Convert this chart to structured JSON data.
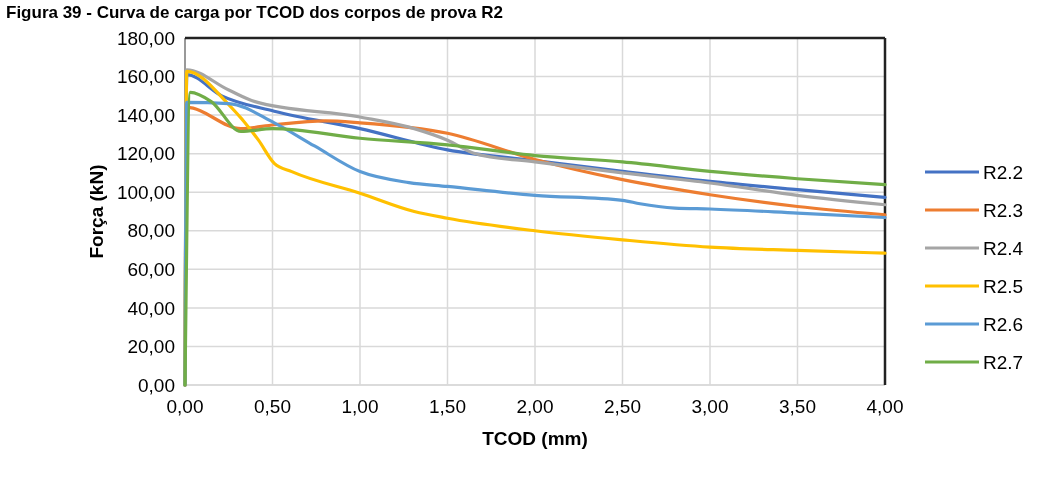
{
  "chart_data": {
    "type": "line",
    "title": "Figura 39 - Curva de carga por TCOD dos corpos de prova R2",
    "xlabel": "TCOD (mm)",
    "ylabel": "Força (kN)",
    "xlim": [
      0,
      4
    ],
    "ylim": [
      0,
      180
    ],
    "xticks": [
      {
        "value": 0,
        "label": "0,00"
      },
      {
        "value": 0.5,
        "label": "0,50"
      },
      {
        "value": 1,
        "label": "1,00"
      },
      {
        "value": 1.5,
        "label": "1,50"
      },
      {
        "value": 2,
        "label": "2,00"
      },
      {
        "value": 2.5,
        "label": "2,50"
      },
      {
        "value": 3,
        "label": "3,00"
      },
      {
        "value": 3.5,
        "label": "3,50"
      },
      {
        "value": 4,
        "label": "4,00"
      }
    ],
    "yticks": [
      {
        "value": 0,
        "label": "0,00"
      },
      {
        "value": 20,
        "label": "20,00"
      },
      {
        "value": 40,
        "label": "40,00"
      },
      {
        "value": 60,
        "label": "60,00"
      },
      {
        "value": 80,
        "label": "80,00"
      },
      {
        "value": 100,
        "label": "100,00"
      },
      {
        "value": 120,
        "label": "120,00"
      },
      {
        "value": 140,
        "label": "140,00"
      },
      {
        "value": 160,
        "label": "160,00"
      },
      {
        "value": 180,
        "label": "180,00"
      }
    ],
    "grid": true,
    "legend": "right",
    "marker": "none",
    "line_style": "solid",
    "series": [
      {
        "name": "R2.2",
        "color": "#4472c4",
        "x": [
          0,
          0.01,
          0.21,
          0.51,
          1.0,
          1.5,
          2.0,
          2.5,
          3.0,
          3.5,
          4.0
        ],
        "values": [
          0,
          161,
          150,
          142,
          133,
          122,
          116.4,
          110.8,
          105.6,
          101.3,
          97.3
        ]
      },
      {
        "name": "R2.3",
        "color": "#ed7d31",
        "x": [
          0,
          0.01,
          0.32,
          0.51,
          0.8,
          1.0,
          1.5,
          2.0,
          2.5,
          3.0,
          3.5,
          4.0
        ],
        "values": [
          0,
          144,
          133,
          135,
          137,
          136,
          130.6,
          117,
          106.5,
          98.7,
          92.6,
          88.3
        ]
      },
      {
        "name": "R2.4",
        "color": "#a5a5a5",
        "x": [
          0,
          0.01,
          0.25,
          0.4,
          1.0,
          1.31,
          1.5,
          1.66,
          2.0,
          2.5,
          3.0,
          3.5,
          4.0
        ],
        "values": [
          0,
          163.5,
          153,
          147,
          139,
          133,
          127,
          120,
          115.7,
          110,
          104.8,
          98.4,
          93.5
        ]
      },
      {
        "name": "R2.5",
        "color": "#ffc000",
        "x": [
          0,
          0.01,
          0.25,
          0.42,
          0.51,
          0.61,
          1.0,
          1.31,
          1.5,
          2.0,
          2.5,
          3.0,
          3.5,
          4.0
        ],
        "values": [
          0,
          162.7,
          145.4,
          127,
          115,
          110.7,
          99.5,
          90,
          86.5,
          80,
          75.3,
          71.5,
          69.8,
          68.4
        ]
      },
      {
        "name": "R2.6",
        "color": "#5b9bd5",
        "x": [
          0,
          0.01,
          0.25,
          0.51,
          0.74,
          1.0,
          1.28,
          1.5,
          2.0,
          2.5,
          2.6,
          2.8,
          3.0,
          3.5,
          4.0
        ],
        "values": [
          0,
          146.6,
          146,
          136,
          124,
          110.7,
          105,
          103,
          98.4,
          95.8,
          94,
          91.8,
          91.3,
          89.2,
          86.9
        ]
      },
      {
        "name": "R2.7",
        "color": "#70ad47",
        "x": [
          0,
          0.03,
          0.15,
          0.32,
          0.5,
          1.0,
          1.5,
          2.0,
          2.5,
          3.0,
          3.5,
          4.0
        ],
        "values": [
          0,
          151.8,
          147,
          131.5,
          133,
          128,
          124.6,
          119,
          115.7,
          110.8,
          107,
          103.9
        ]
      }
    ]
  }
}
